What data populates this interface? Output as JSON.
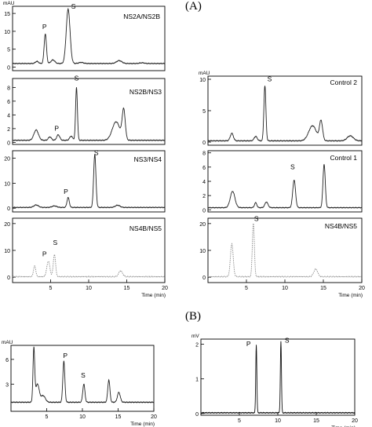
{
  "figure": {
    "section_a": "(A)",
    "section_b": "(B)"
  },
  "chart_data": [
    {
      "type": "line",
      "panel_id": "A-NS2A-NS2B",
      "title": "NS2A/NS2B",
      "ylabel": "mAU",
      "xlabel": "",
      "ylim": [
        -1,
        17
      ],
      "xlim": [
        0,
        20
      ],
      "y_ticks": [
        0,
        5,
        10,
        15
      ],
      "x_ticks": [],
      "baseline": 1.0,
      "peaks": [
        {
          "x": 3.2,
          "y": 1.6,
          "w": 0.2
        },
        {
          "x": 4.3,
          "y": 9.3,
          "w": 0.15
        },
        {
          "x": 5.3,
          "y": 2.0,
          "w": 0.25
        },
        {
          "x": 7.3,
          "y": 16.2,
          "w": 0.25
        },
        {
          "x": 9.0,
          "y": 1.3,
          "w": 0.3
        },
        {
          "x": 14.0,
          "y": 1.8,
          "w": 0.35
        },
        {
          "x": 17.0,
          "y": 1.2,
          "w": 0.3
        }
      ],
      "labels": [
        {
          "text": "P",
          "x": 4.2,
          "y": 10.6
        },
        {
          "text": "S",
          "x": 8.0,
          "y": 16.3
        }
      ],
      "color": "#222222"
    },
    {
      "type": "line",
      "panel_id": "A-NS2B-NS3",
      "title": "NS2B/NS3",
      "ylabel": "",
      "xlabel": "",
      "ylim": [
        -0.3,
        9.3
      ],
      "xlim": [
        0,
        20
      ],
      "y_ticks": [
        0,
        2,
        4,
        6,
        8
      ],
      "x_ticks": [],
      "baseline": 0.3,
      "peaks": [
        {
          "x": 3.1,
          "y": 1.8,
          "w": 0.3
        },
        {
          "x": 4.9,
          "y": 0.8,
          "w": 0.2
        },
        {
          "x": 6.0,
          "y": 1.1,
          "w": 0.2
        },
        {
          "x": 7.7,
          "y": 0.9,
          "w": 0.2
        },
        {
          "x": 8.4,
          "y": 8.0,
          "w": 0.12
        },
        {
          "x": 13.6,
          "y": 3.0,
          "w": 0.5
        },
        {
          "x": 14.6,
          "y": 4.6,
          "w": 0.2
        }
      ],
      "labels": [
        {
          "text": "P",
          "x": 5.8,
          "y": 1.7
        },
        {
          "text": "S",
          "x": 8.4,
          "y": 9.0
        }
      ],
      "color": "#222222"
    },
    {
      "type": "line",
      "panel_id": "A-NS3-NS4",
      "title": "NS3/NS4",
      "ylabel": "",
      "xlabel": "",
      "ylim": [
        -1.5,
        23
      ],
      "xlim": [
        0,
        20
      ],
      "y_ticks": [
        0,
        10,
        20
      ],
      "x_ticks": [],
      "baseline": 0.3,
      "peaks": [
        {
          "x": 3.1,
          "y": 1.3,
          "w": 0.3
        },
        {
          "x": 5.5,
          "y": 0.9,
          "w": 0.3
        },
        {
          "x": 7.3,
          "y": 4.3,
          "w": 0.15
        },
        {
          "x": 10.8,
          "y": 21.5,
          "w": 0.15
        },
        {
          "x": 13.8,
          "y": 1.2,
          "w": 0.3
        }
      ],
      "labels": [
        {
          "text": "P",
          "x": 7.0,
          "y": 5.8
        },
        {
          "text": "S",
          "x": 11.0,
          "y": 21.3
        }
      ],
      "color": "#222222"
    },
    {
      "type": "line",
      "panel_id": "A-NS4B-NS5",
      "title": "NS4B/NS5",
      "ylabel": "",
      "xlabel": "Time (min)",
      "ylim": [
        -2,
        22
      ],
      "xlim": [
        0,
        20
      ],
      "y_ticks": [
        0,
        10,
        20
      ],
      "x_ticks": [
        5,
        10,
        15,
        20
      ],
      "baseline": 0.2,
      "peaks": [
        {
          "x": 2.9,
          "y": 4.2,
          "w": 0.15
        },
        {
          "x": 4.7,
          "y": 6.0,
          "w": 0.2
        },
        {
          "x": 5.5,
          "y": 8.5,
          "w": 0.15
        },
        {
          "x": 14.2,
          "y": 2.4,
          "w": 0.25
        }
      ],
      "labels": [
        {
          "text": "P",
          "x": 4.2,
          "y": 7.8
        },
        {
          "text": "S",
          "x": 5.6,
          "y": 12.0
        }
      ],
      "color": "#888888"
    },
    {
      "type": "line",
      "panel_id": "A-Control2",
      "title": "Control 2",
      "ylabel": "mAU",
      "xlabel": "",
      "ylim": [
        -0.5,
        10.5
      ],
      "xlim": [
        0,
        20
      ],
      "y_ticks": [
        0,
        5,
        10
      ],
      "x_ticks": [],
      "baseline": 0.2,
      "peaks": [
        {
          "x": 3.1,
          "y": 1.4,
          "w": 0.2
        },
        {
          "x": 6.2,
          "y": 0.9,
          "w": 0.2
        },
        {
          "x": 7.4,
          "y": 9.0,
          "w": 0.13
        },
        {
          "x": 13.6,
          "y": 2.6,
          "w": 0.5
        },
        {
          "x": 14.7,
          "y": 3.3,
          "w": 0.2
        },
        {
          "x": 18.5,
          "y": 1.0,
          "w": 0.4
        }
      ],
      "labels": [
        {
          "text": "S",
          "x": 8.0,
          "y": 9.7
        }
      ],
      "color": "#222222"
    },
    {
      "type": "line",
      "panel_id": "A-Control1",
      "title": "Control 1",
      "ylabel": "",
      "xlabel": "",
      "ylim": [
        -0.3,
        8.3
      ],
      "xlim": [
        0,
        20
      ],
      "y_ticks": [
        0,
        2,
        4,
        6,
        8
      ],
      "x_ticks": [],
      "baseline": 0.3,
      "peaks": [
        {
          "x": 3.2,
          "y": 2.6,
          "w": 0.3
        },
        {
          "x": 6.2,
          "y": 1.0,
          "w": 0.15
        },
        {
          "x": 7.6,
          "y": 1.1,
          "w": 0.2
        },
        {
          "x": 11.2,
          "y": 4.2,
          "w": 0.18
        },
        {
          "x": 15.1,
          "y": 6.4,
          "w": 0.15
        }
      ],
      "labels": [
        {
          "text": "S",
          "x": 11.0,
          "y": 5.7
        }
      ],
      "color": "#222222"
    },
    {
      "type": "line",
      "panel_id": "A-NS4B-NS5-control",
      "title": "NS4B/NS5",
      "ylabel": "",
      "xlabel": "Time (min)",
      "ylim": [
        -2,
        22
      ],
      "xlim": [
        0,
        20
      ],
      "y_ticks": [
        0,
        10,
        20
      ],
      "x_ticks": [
        5,
        10,
        15,
        20
      ],
      "baseline": 0.2,
      "peaks": [
        {
          "x": 3.1,
          "y": 12.5,
          "w": 0.18
        },
        {
          "x": 5.9,
          "y": 20.2,
          "w": 0.13
        },
        {
          "x": 14.0,
          "y": 3.0,
          "w": 0.25
        }
      ],
      "labels": [
        {
          "text": "S",
          "x": 6.3,
          "y": 21.0
        }
      ],
      "color": "#888888"
    },
    {
      "type": "line",
      "panel_id": "B-UV",
      "title": "",
      "ylabel": "mAU",
      "xlabel": "Time (min)",
      "ylim": [
        -0.3,
        7.7
      ],
      "xlim": [
        0,
        20
      ],
      "y_ticks": [
        3,
        6
      ],
      "x_ticks": [
        5,
        10,
        15,
        20
      ],
      "baseline": 0.8,
      "peaks": [
        {
          "x": 3.2,
          "y": 7.2,
          "w": 0.12
        },
        {
          "x": 3.7,
          "y": 3.0,
          "w": 0.25
        },
        {
          "x": 4.5,
          "y": 1.6,
          "w": 0.3
        },
        {
          "x": 7.4,
          "y": 5.8,
          "w": 0.14
        },
        {
          "x": 10.2,
          "y": 3.0,
          "w": 0.15
        },
        {
          "x": 13.7,
          "y": 3.5,
          "w": 0.15
        },
        {
          "x": 15.1,
          "y": 2.0,
          "w": 0.2
        }
      ],
      "labels": [
        {
          "text": "P",
          "x": 7.6,
          "y": 6.2
        },
        {
          "text": "S",
          "x": 10.1,
          "y": 3.8
        }
      ],
      "color": "#222222"
    },
    {
      "type": "line",
      "panel_id": "B-MS",
      "title": "",
      "ylabel": "mV",
      "xlabel": "Time (min)",
      "ylim": [
        -0.05,
        2.15
      ],
      "xlim": [
        0,
        20
      ],
      "y_ticks": [
        0,
        1,
        2
      ],
      "x_ticks": [
        5,
        10,
        15,
        20
      ],
      "baseline": 0.02,
      "peaks": [
        {
          "x": 7.2,
          "y": 2.0,
          "w": 0.07
        },
        {
          "x": 10.4,
          "y": 2.1,
          "w": 0.07
        }
      ],
      "labels": [
        {
          "text": "P",
          "x": 6.2,
          "y": 1.95
        },
        {
          "text": "S",
          "x": 11.2,
          "y": 2.05
        }
      ],
      "color": "#111111"
    }
  ]
}
